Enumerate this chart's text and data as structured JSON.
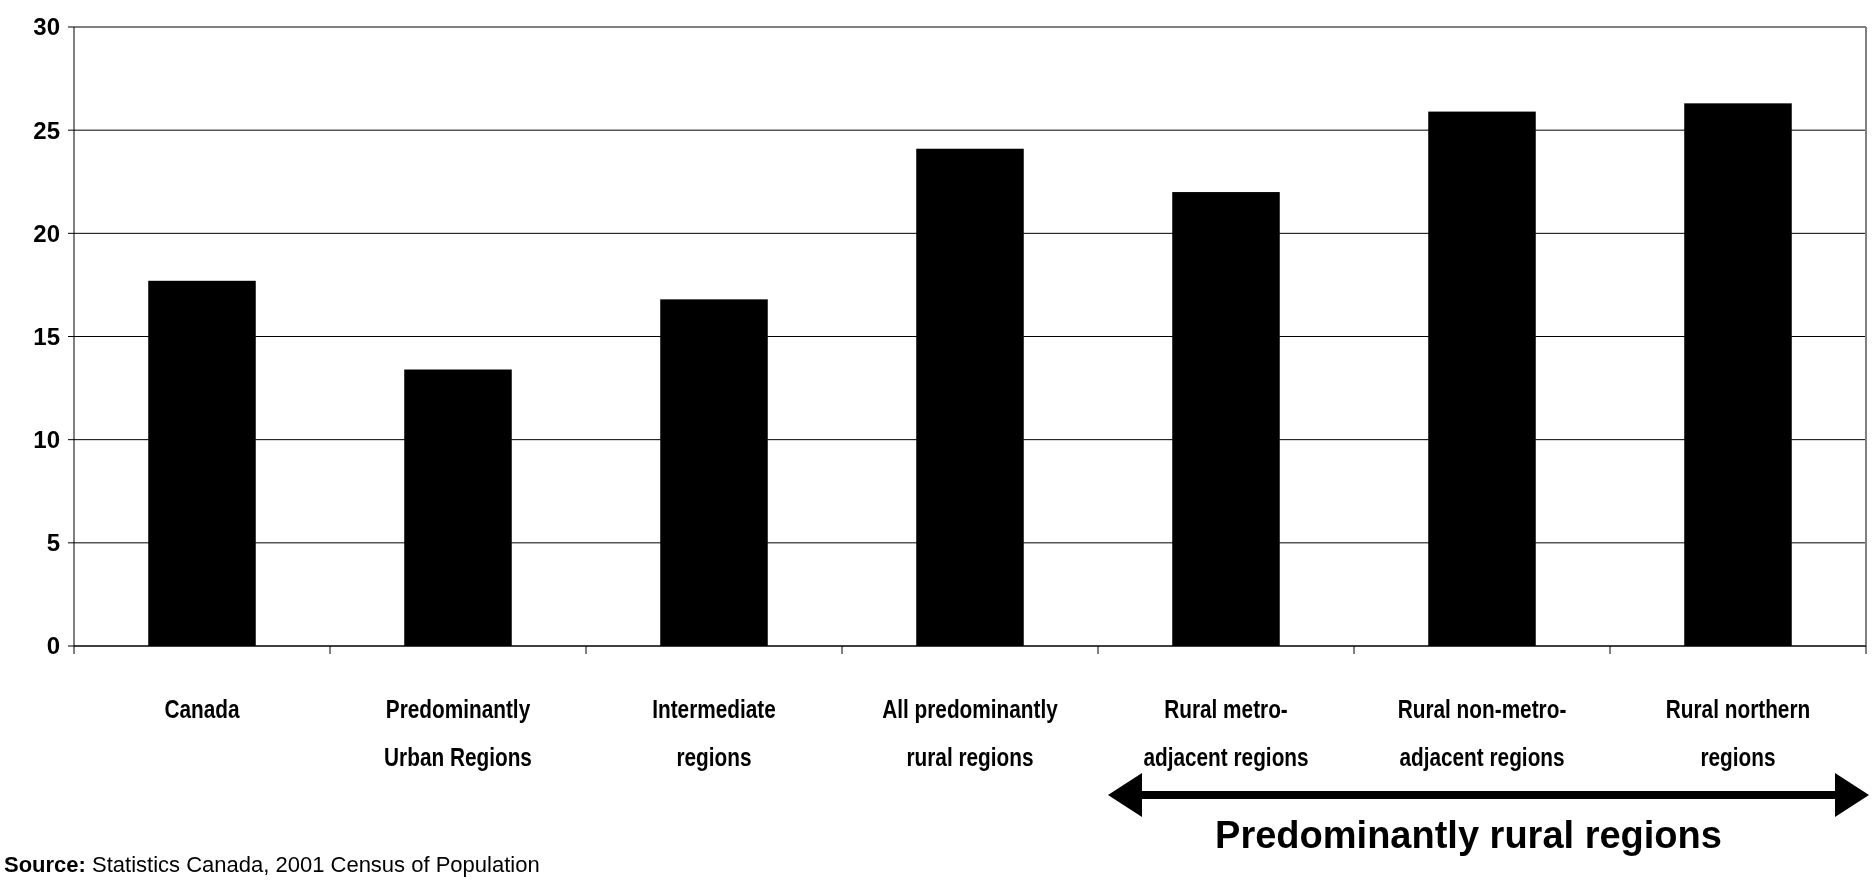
{
  "chart_data": {
    "type": "bar",
    "categories": [
      "Canada",
      "Predominantly Urban Regions",
      "Intermediate regions",
      "All predominantly rural regions",
      "Rural metro-adjacent regions",
      "Rural non-metro-adjacent regions",
      "Rural northern regions"
    ],
    "values": [
      17.7,
      13.4,
      16.8,
      24.1,
      22.0,
      25.9,
      26.3
    ],
    "color": "#000000",
    "ylim": [
      0,
      30
    ],
    "yticks": [
      0,
      5,
      10,
      15,
      20,
      25,
      30
    ],
    "grid": "y",
    "annotations": [
      "Predominantly rural regions",
      "Source: Statistics Canada, 2001 Census of Population"
    ]
  }
}
